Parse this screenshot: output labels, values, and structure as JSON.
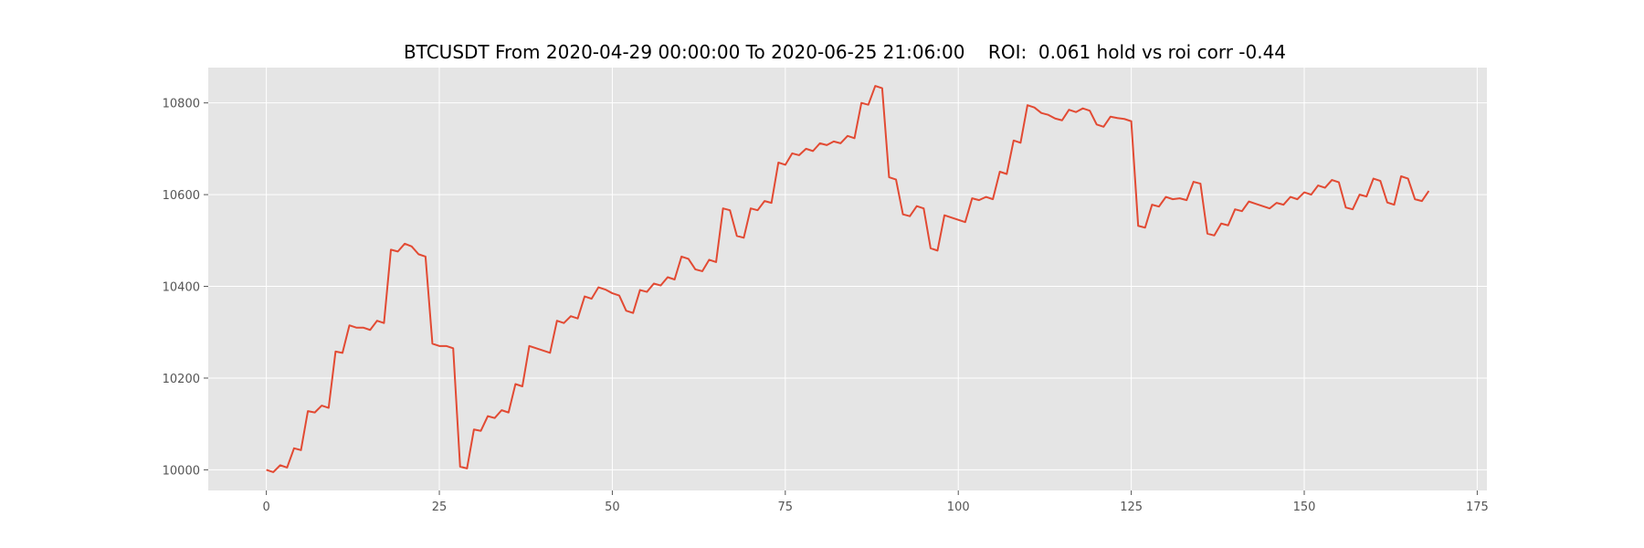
{
  "colors": {
    "plot_background": "#e5e5e5",
    "grid": "#ffffff",
    "line": "#e24a33",
    "tick_label": "#555555"
  },
  "chart_data": {
    "type": "line",
    "title": "BTCUSDT From 2020-04-29 00:00:00 To 2020-06-25 21:06:00    ROI:  0.061 hold vs roi corr -0.44",
    "xlabel": "",
    "ylabel": "",
    "xlim": [
      -8.4,
      176.4
    ],
    "ylim": [
      9955,
      10877
    ],
    "grid": true,
    "legend": "none",
    "xticks": [
      0,
      25,
      50,
      75,
      100,
      125,
      150,
      175
    ],
    "yticks": [
      10000,
      10200,
      10400,
      10600,
      10800
    ],
    "series": [
      {
        "x": [
          0,
          1,
          2,
          3,
          4,
          5,
          6,
          7,
          8,
          9,
          10,
          11,
          12,
          13,
          14,
          15,
          16,
          17,
          18,
          19,
          20,
          21,
          22,
          23,
          24,
          25,
          26,
          27,
          28,
          29,
          30,
          31,
          32,
          33,
          34,
          35,
          36,
          37,
          38,
          39,
          40,
          41,
          42,
          43,
          44,
          45,
          46,
          47,
          48,
          49,
          50,
          51,
          52,
          53,
          54,
          55,
          56,
          57,
          58,
          59,
          60,
          61,
          62,
          63,
          64,
          65,
          66,
          67,
          68,
          69,
          70,
          71,
          72,
          73,
          74,
          75,
          76,
          77,
          78,
          79,
          80,
          81,
          82,
          83,
          84,
          85,
          86,
          87,
          88,
          89,
          90,
          91,
          92,
          93,
          94,
          95,
          96,
          97,
          98,
          99,
          100,
          101,
          102,
          103,
          104,
          105,
          106,
          107,
          108,
          109,
          110,
          111,
          112,
          113,
          114,
          115,
          116,
          117,
          118,
          119,
          120,
          121,
          122,
          123,
          124,
          125,
          126,
          127,
          128,
          129,
          130,
          131,
          132,
          133,
          134,
          135,
          136,
          137,
          138,
          139,
          140,
          141,
          142,
          143,
          144,
          145,
          146,
          147,
          148,
          149,
          150,
          151,
          152,
          153,
          154,
          155,
          156,
          157,
          158,
          159,
          160,
          161,
          162,
          163,
          164,
          165,
          166,
          167,
          168
        ],
        "y": [
          10000,
          9995,
          10010,
          10005,
          10047,
          10043,
          10128,
          10125,
          10140,
          10135,
          10258,
          10255,
          10315,
          10310,
          10310,
          10305,
          10325,
          10320,
          10480,
          10476,
          10493,
          10487,
          10470,
          10465,
          10275,
          10270,
          10270,
          10265,
          10007,
          10003,
          10088,
          10085,
          10117,
          10113,
          10130,
          10125,
          10187,
          10182,
          10270,
          10265,
          10260,
          10255,
          10325,
          10320,
          10335,
          10330,
          10378,
          10373,
          10398,
          10393,
          10385,
          10380,
          10347,
          10342,
          10392,
          10388,
          10406,
          10402,
          10420,
          10415,
          10465,
          10460,
          10437,
          10433,
          10458,
          10453,
          10570,
          10566,
          10510,
          10506,
          10570,
          10566,
          10586,
          10582,
          10670,
          10665,
          10690,
          10686,
          10700,
          10695,
          10712,
          10708,
          10716,
          10712,
          10728,
          10723,
          10800,
          10796,
          10837,
          10832,
          10638,
          10633,
          10557,
          10553,
          10575,
          10570,
          10483,
          10478,
          10555,
          10550,
          10545,
          10540,
          10592,
          10588,
          10595,
          10590,
          10650,
          10645,
          10718,
          10713,
          10795,
          10790,
          10778,
          10774,
          10766,
          10762,
          10785,
          10780,
          10788,
          10783,
          10753,
          10748,
          10770,
          10767,
          10765,
          10760,
          10532,
          10528,
          10578,
          10574,
          10595,
          10590,
          10592,
          10588,
          10628,
          10624,
          10515,
          10511,
          10537,
          10533,
          10568,
          10564,
          10585,
          10580,
          10575,
          10570,
          10582,
          10578,
          10595,
          10590,
          10605,
          10600,
          10620,
          10615,
          10632,
          10627,
          10572,
          10568,
          10600,
          10596,
          10635,
          10630,
          10583,
          10578,
          10640,
          10635,
          10590,
          10586,
          10608
        ]
      }
    ]
  }
}
